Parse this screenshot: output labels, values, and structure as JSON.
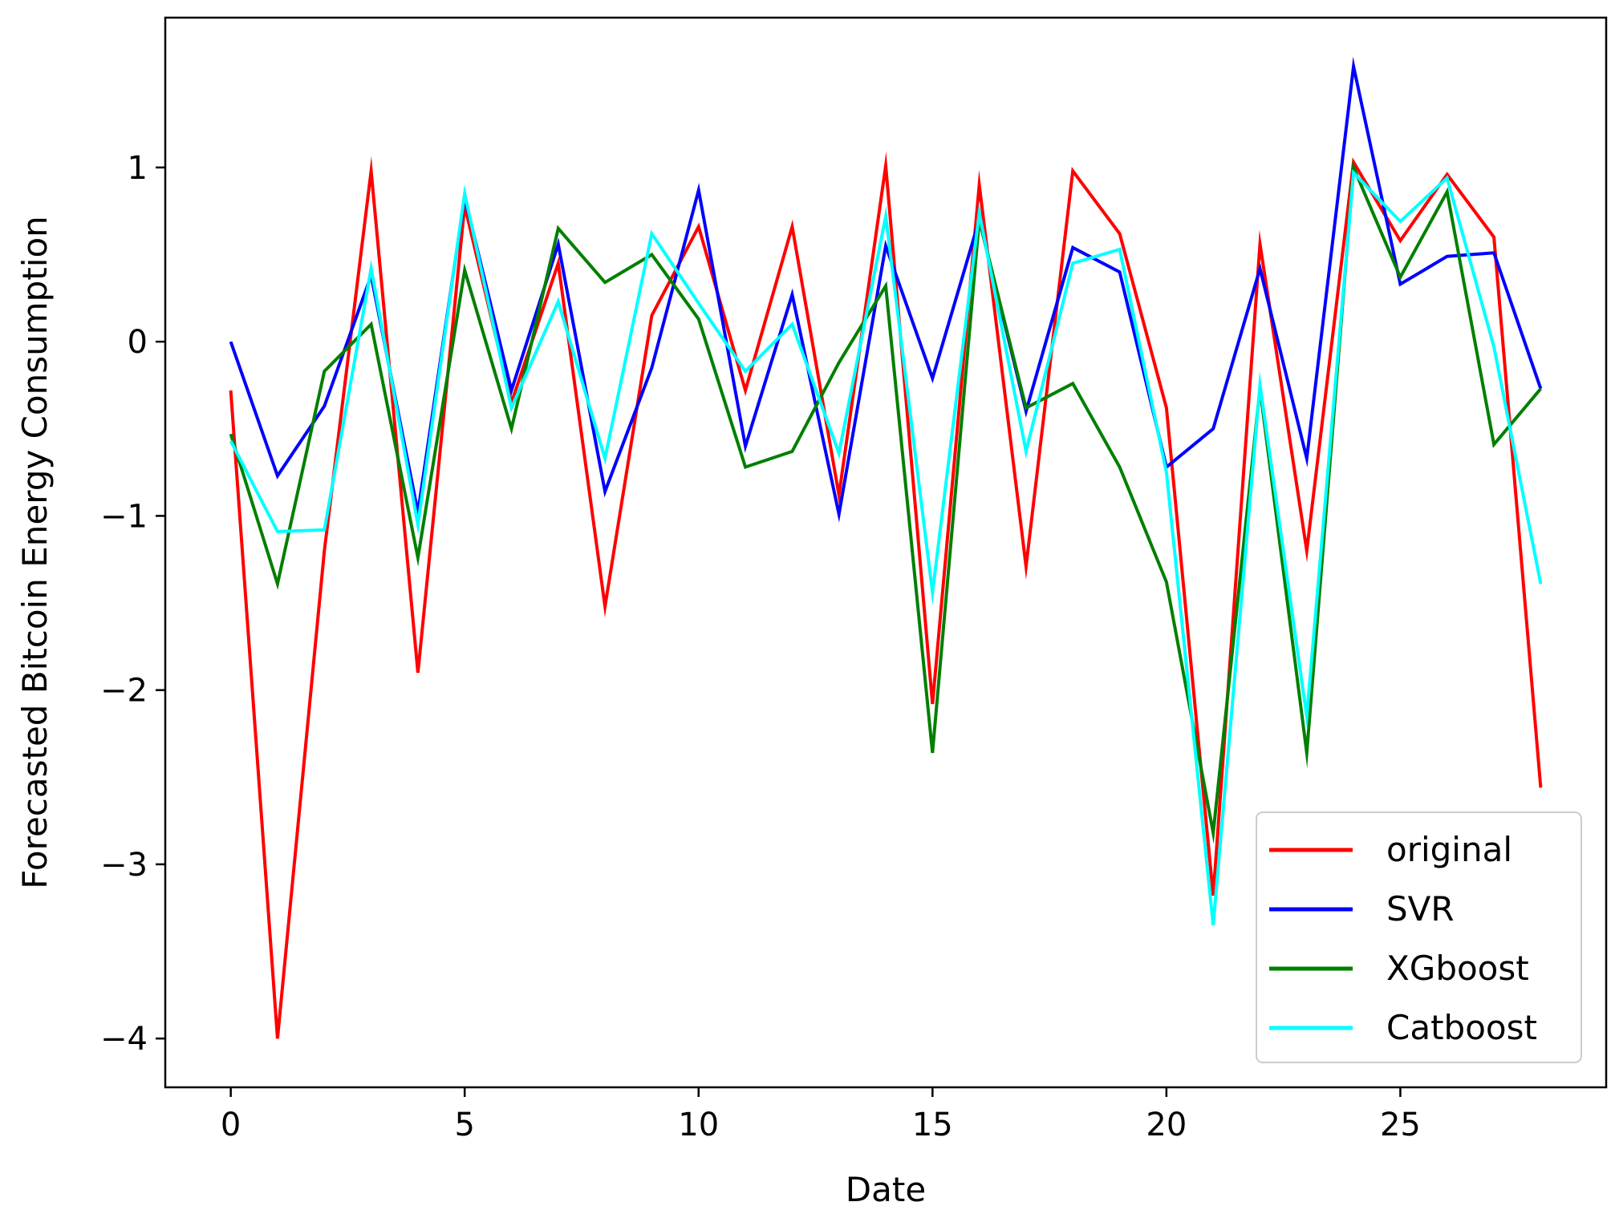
{
  "chart_data": {
    "type": "line",
    "title": "",
    "xlabel": "Date",
    "ylabel": "Forecasted Bitcoin Energy Consumption",
    "xlim": [
      -1.4,
      29.4
    ],
    "ylim": [
      -4.28,
      1.86
    ],
    "x_ticks": [
      0,
      5,
      10,
      15,
      20,
      25
    ],
    "y_ticks": [
      -4,
      -3,
      -2,
      -1,
      0,
      1
    ],
    "y_tick_labels": [
      "−4",
      "−3",
      "−2",
      "−1",
      "0",
      "1"
    ],
    "grid": false,
    "legend_position": "lower-right",
    "x": [
      0,
      1,
      2,
      3,
      4,
      5,
      6,
      7,
      8,
      9,
      10,
      11,
      12,
      13,
      14,
      15,
      16,
      17,
      18,
      19,
      20,
      21,
      22,
      23,
      24,
      25,
      26,
      27,
      28
    ],
    "series": [
      {
        "name": "original",
        "color": "#ff0000",
        "values": [
          -0.28,
          -4.0,
          -1.2,
          0.98,
          -1.9,
          0.78,
          -0.35,
          0.45,
          -1.52,
          0.15,
          0.66,
          -0.28,
          0.66,
          -0.88,
          1.01,
          -2.08,
          0.9,
          -1.29,
          0.98,
          0.62,
          -0.38,
          -3.18,
          0.56,
          -1.2,
          1.03,
          0.58,
          0.96,
          0.6,
          -2.56
        ]
      },
      {
        "name": "SVR",
        "color": "#0000ff",
        "values": [
          0.0,
          -0.77,
          -0.37,
          0.38,
          -0.98,
          0.83,
          -0.28,
          0.56,
          -0.86,
          -0.15,
          0.87,
          -0.6,
          0.27,
          -0.99,
          0.55,
          -0.21,
          0.7,
          -0.4,
          0.54,
          0.4,
          -0.72,
          -0.5,
          0.42,
          -0.67,
          1.58,
          0.33,
          0.49,
          0.51,
          -0.27
        ]
      },
      {
        "name": "XGboost",
        "color": "#007f00",
        "values": [
          -0.53,
          -1.39,
          -0.17,
          0.1,
          -1.24,
          0.41,
          -0.5,
          0.65,
          0.34,
          0.5,
          0.13,
          -0.72,
          -0.63,
          -0.12,
          0.32,
          -2.36,
          0.7,
          -0.38,
          -0.24,
          -0.72,
          -1.38,
          -2.82,
          -0.27,
          -2.36,
          1.0,
          0.37,
          0.86,
          -0.59,
          -0.27
        ]
      },
      {
        "name": "Catboost",
        "color": "#00ffff",
        "values": [
          -0.57,
          -1.09,
          -1.08,
          0.42,
          -1.05,
          0.85,
          -0.38,
          0.23,
          -0.67,
          0.62,
          0.22,
          -0.17,
          0.1,
          -0.64,
          0.72,
          -1.44,
          0.74,
          -0.63,
          0.45,
          0.53,
          -0.75,
          -3.35,
          -0.25,
          -2.15,
          0.97,
          0.69,
          0.94,
          -0.03,
          -1.39
        ]
      }
    ]
  }
}
